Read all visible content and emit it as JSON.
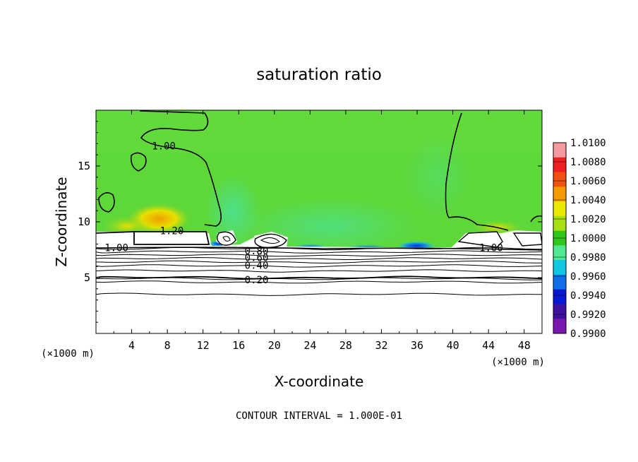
{
  "chart_data": {
    "type": "heatmap",
    "title": "saturation ratio",
    "xlabel": "X-coordinate",
    "ylabel": "Z-coordinate",
    "x_unit_left": "(×1000 m)",
    "x_unit_right": "(×1000 m)",
    "xlim": [
      0,
      50
    ],
    "ylim": [
      0,
      20
    ],
    "x_ticks": [
      4,
      8,
      12,
      16,
      20,
      24,
      28,
      32,
      36,
      40,
      44,
      48
    ],
    "x_tick_labels": [
      "4",
      "8",
      "12",
      "16",
      "20",
      "24",
      "28",
      "32",
      "36",
      "40",
      "44",
      "48"
    ],
    "y_ticks": [
      5,
      10,
      15
    ],
    "y_tick_labels": [
      "5",
      "10",
      "15"
    ],
    "colorbar": {
      "min": 0.99,
      "max": 1.01,
      "labels": [
        "1.0100",
        "1.0080",
        "1.0060",
        "1.0040",
        "1.0020",
        "1.0000",
        "0.9980",
        "0.9960",
        "0.9940",
        "0.9920",
        "0.9900"
      ],
      "colors": [
        "#f59aa0",
        "#ee2020",
        "#f05010",
        "#f59a00",
        "#e8e800",
        "#a8e010",
        "#30c818",
        "#50e890",
        "#10c8e0",
        "#1070e8",
        "#0818d0",
        "#4010a0",
        "#7818b0"
      ]
    },
    "contour_labels": [
      {
        "text": "1.00",
        "x": 7.6,
        "z": 16.8
      },
      {
        "text": "1.20",
        "x": 8.5,
        "z": 9.2
      },
      {
        "text": "1.00",
        "x": 2.3,
        "z": 7.7
      },
      {
        "text": "0.80",
        "x": 18.0,
        "z": 7.4
      },
      {
        "text": "0.60",
        "x": 18.0,
        "z": 6.8
      },
      {
        "text": "0.40",
        "x": 18.0,
        "z": 6.1
      },
      {
        "text": "0.20",
        "x": 18.0,
        "z": 4.8
      },
      {
        "text": "1.00",
        "x": 44.3,
        "z": 7.7
      }
    ],
    "contour_levels_z": [
      7.6,
      7.3,
      7.0,
      6.7,
      6.4,
      6.05,
      5.6,
      5.0,
      4.9,
      4.6,
      3.5
    ],
    "grid": false
  },
  "footer": {
    "contour_interval": "CONTOUR INTERVAL = 1.000E-01"
  }
}
